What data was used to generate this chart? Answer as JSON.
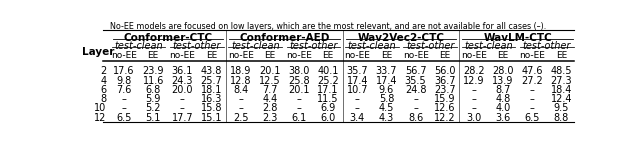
{
  "caption": "No-EE models are focused on low layers, which are the most relevant, and are not available for all cases (–).",
  "models": [
    "Conformer-CTC",
    "Conformer-AED",
    "Wav2Vec2-CTC",
    "WavLM-CTC"
  ],
  "layers": [
    "2",
    "4",
    "6",
    "8",
    "10",
    "12"
  ],
  "data": {
    "Conformer-CTC": {
      "test-clean": {
        "no-EE": [
          "17.6",
          "9.8",
          "7.6",
          "–",
          "–",
          "6.5"
        ],
        "EE": [
          "23.9",
          "11.6",
          "6.8",
          "5.9",
          "5.2",
          "5.1"
        ]
      },
      "test-other": {
        "no-EE": [
          "36.1",
          "24.3",
          "20.0",
          "–",
          "–",
          "17.7"
        ],
        "EE": [
          "43.8",
          "25.7",
          "18.1",
          "16.3",
          "15.8",
          "15.1"
        ]
      }
    },
    "Conformer-AED": {
      "test-clean": {
        "no-EE": [
          "18.9",
          "12.8",
          "8.4",
          "–",
          "–",
          "2.5"
        ],
        "EE": [
          "20.1",
          "12.5",
          "7.7",
          "4.4",
          "2.8",
          "2.3"
        ]
      },
      "test-other": {
        "no-EE": [
          "38.0",
          "25.8",
          "20.1",
          "–",
          "–",
          "6.1"
        ],
        "EE": [
          "40.1",
          "25.2",
          "17.1",
          "11.5",
          "6.9",
          "6.0"
        ]
      }
    },
    "Wav2Vec2-CTC": {
      "test-clean": {
        "no-EE": [
          "35.7",
          "17.4",
          "10.7",
          "–",
          "–",
          "3.4"
        ],
        "EE": [
          "33.7",
          "17.4",
          "9.6",
          "5.8",
          "4.5",
          "4.3"
        ]
      },
      "test-other": {
        "no-EE": [
          "56.7",
          "35.5",
          "24.8",
          "–",
          "–",
          "8.6"
        ],
        "EE": [
          "56.0",
          "36.7",
          "23.7",
          "15.9",
          "12.6",
          "12.2"
        ]
      }
    },
    "WavLM-CTC": {
      "test-clean": {
        "no-EE": [
          "28.2",
          "12.9",
          "–",
          "–",
          "–",
          "3.0"
        ],
        "EE": [
          "28.0",
          "13.9",
          "8.7",
          "4.8",
          "4.0",
          "3.6"
        ]
      },
      "test-other": {
        "no-EE": [
          "47.6",
          "27.2",
          "–",
          "–",
          "–",
          "6.5"
        ],
        "EE": [
          "48.5",
          "27.3",
          "18.4",
          "12.4",
          "9.5",
          "8.8"
        ]
      }
    }
  },
  "caption_fontsize": 5.8,
  "header_fontsize": 7.5,
  "cell_fontsize": 7.0,
  "layer_fontsize": 7.0
}
